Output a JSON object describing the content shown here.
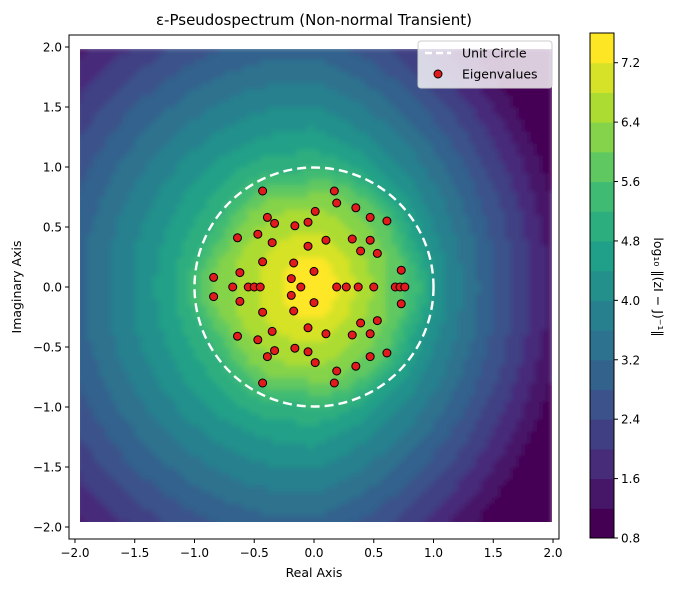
{
  "chart_data": {
    "type": "contour",
    "title": "ε-Pseudospectrum (Non-normal Transient)",
    "xlabel": "Real Axis",
    "ylabel": "Imaginary Axis",
    "colorbar_label": "log₁₀ ‖(zI − J)⁻¹‖",
    "xlim": [
      -2.05,
      2.05
    ],
    "ylim": [
      -2.1,
      2.1
    ],
    "data_extent": [
      -2,
      2,
      -2,
      2
    ],
    "x_ticks": [
      -2.0,
      -1.5,
      -1.0,
      -0.5,
      0.0,
      0.5,
      1.0,
      1.5,
      2.0
    ],
    "x_tick_labels": [
      "−2.0",
      "−1.5",
      "−1.0",
      "−0.5",
      "0.0",
      "0.5",
      "1.0",
      "1.5",
      "2.0"
    ],
    "y_ticks": [
      -2.0,
      -1.5,
      -1.0,
      -0.5,
      0.0,
      0.5,
      1.0,
      1.5,
      2.0
    ],
    "y_tick_labels": [
      "−2.0",
      "−1.5",
      "−1.0",
      "−0.5",
      "0.0",
      "0.5",
      "1.0",
      "1.5",
      "2.0"
    ],
    "colorbar": {
      "min": 0.8,
      "max": 7.6,
      "levels": [
        0.8,
        1.2,
        1.6,
        2.0,
        2.4,
        2.8,
        3.2,
        3.6,
        4.0,
        4.4,
        4.8,
        5.2,
        5.6,
        6.0,
        6.4,
        6.8,
        7.2,
        7.6
      ],
      "ticks": [
        0.8,
        1.6,
        2.4,
        3.2,
        4.0,
        4.8,
        5.6,
        6.4,
        7.2
      ],
      "tick_labels": [
        "0.8",
        "1.6",
        "2.4",
        "3.2",
        "4.0",
        "4.8",
        "5.6",
        "6.4",
        "7.2"
      ],
      "colormap": "viridis"
    },
    "unit_circle": {
      "center": [
        0,
        0
      ],
      "radius": 1.0,
      "color": "#ffffff",
      "style": "dashed"
    },
    "eigenvalues": [
      [
        -0.43,
        0.8
      ],
      [
        -0.43,
        -0.8
      ],
      [
        -0.39,
        0.58
      ],
      [
        -0.39,
        -0.58
      ],
      [
        -0.47,
        0.44
      ],
      [
        -0.47,
        -0.44
      ],
      [
        -0.64,
        0.41
      ],
      [
        -0.64,
        -0.41
      ],
      [
        -0.33,
        0.53
      ],
      [
        -0.33,
        -0.53
      ],
      [
        -0.35,
        0.37
      ],
      [
        -0.35,
        -0.37
      ],
      [
        -0.43,
        0.21
      ],
      [
        -0.43,
        -0.21
      ],
      [
        -0.62,
        0.12
      ],
      [
        -0.62,
        -0.12
      ],
      [
        -0.84,
        0.08
      ],
      [
        -0.84,
        -0.08
      ],
      [
        -0.68,
        0.0
      ],
      [
        -0.55,
        0.0
      ],
      [
        -0.5,
        0.0
      ],
      [
        -0.45,
        0.0
      ],
      [
        -0.16,
        0.51
      ],
      [
        -0.16,
        -0.51
      ],
      [
        -0.17,
        0.2
      ],
      [
        -0.17,
        -0.2
      ],
      [
        -0.19,
        0.07
      ],
      [
        -0.19,
        -0.07
      ],
      [
        -0.11,
        0.0
      ],
      [
        -0.05,
        0.54
      ],
      [
        -0.05,
        -0.54
      ],
      [
        -0.05,
        0.34
      ],
      [
        -0.05,
        -0.34
      ],
      [
        0.01,
        0.63
      ],
      [
        0.01,
        -0.63
      ],
      [
        0.0,
        0.13
      ],
      [
        0.0,
        -0.13
      ],
      [
        0.1,
        0.39
      ],
      [
        0.1,
        -0.39
      ],
      [
        0.17,
        0.8
      ],
      [
        0.17,
        -0.8
      ],
      [
        0.19,
        0.7
      ],
      [
        0.19,
        -0.7
      ],
      [
        0.19,
        0.0
      ],
      [
        0.27,
        0.0
      ],
      [
        0.37,
        0.0
      ],
      [
        0.32,
        0.4
      ],
      [
        0.32,
        -0.4
      ],
      [
        0.35,
        0.66
      ],
      [
        0.35,
        -0.66
      ],
      [
        0.39,
        0.3
      ],
      [
        0.39,
        -0.3
      ],
      [
        0.47,
        0.39
      ],
      [
        0.47,
        -0.39
      ],
      [
        0.47,
        0.58
      ],
      [
        0.47,
        -0.58
      ],
      [
        0.5,
        0.0
      ],
      [
        0.53,
        0.28
      ],
      [
        0.53,
        -0.28
      ],
      [
        0.61,
        0.55
      ],
      [
        0.61,
        -0.55
      ],
      [
        0.68,
        0.0
      ],
      [
        0.72,
        0.0
      ],
      [
        0.76,
        0.0
      ],
      [
        0.73,
        0.14
      ],
      [
        0.73,
        -0.14
      ]
    ],
    "eigenvalue_style": {
      "fill": "#e31a1c",
      "stroke": "#000000"
    },
    "legend": {
      "position": "top-right",
      "entries": [
        {
          "label": "Unit Circle",
          "kind": "dashed-line",
          "color": "#ffffff"
        },
        {
          "label": "Eigenvalues",
          "kind": "marker",
          "color": "#e31a1c"
        }
      ]
    },
    "grid": false
  }
}
